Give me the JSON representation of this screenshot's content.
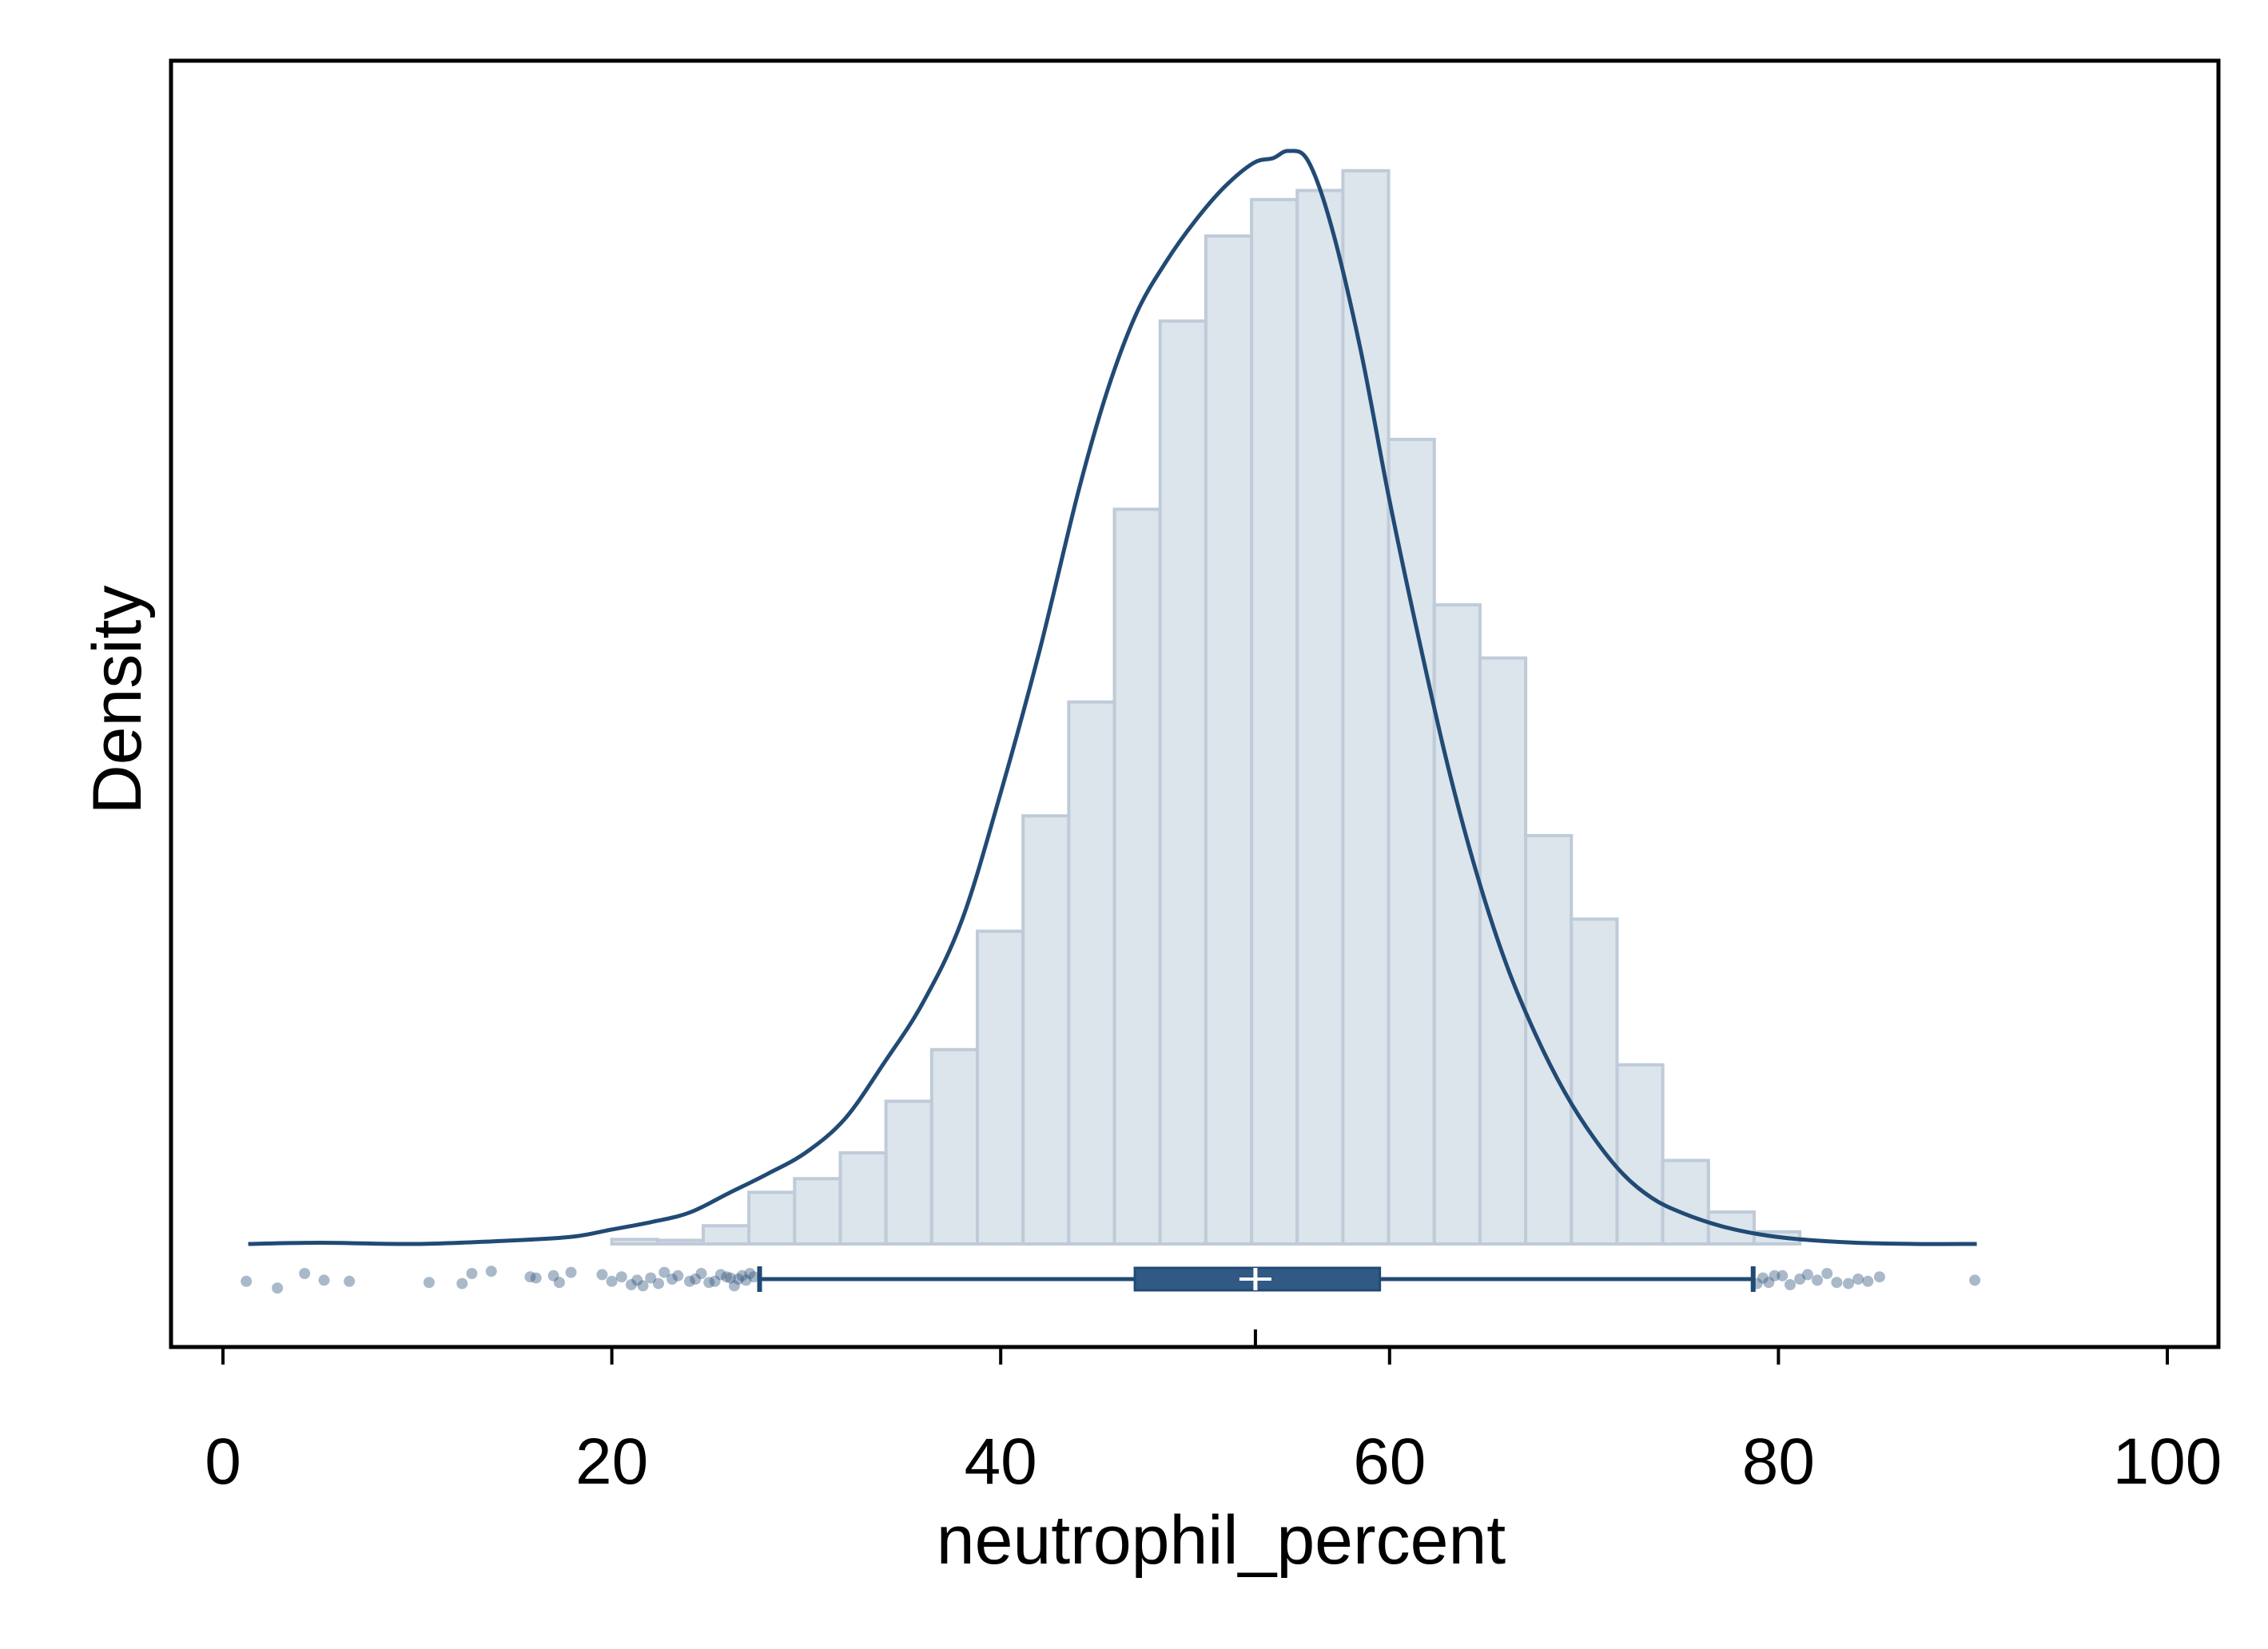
{
  "chart_data": {
    "type": "histogram",
    "xlabel": "neutrophil_percent",
    "ylabel": "Density",
    "xlim": [
      -2.5,
      102.5
    ],
    "xticks": [
      0,
      20,
      40,
      60,
      80,
      100
    ],
    "xtick_labels": [
      "0",
      "20",
      "40",
      "60",
      "80",
      "100"
    ],
    "histogram": {
      "bin_edges": [
        20.0,
        22.35,
        24.7,
        27.05,
        29.4,
        31.75,
        34.1,
        36.45,
        38.8,
        41.15,
        43.5,
        45.85,
        48.2,
        50.55,
        52.9,
        55.25,
        57.6,
        59.95,
        62.3,
        64.65,
        67.0,
        69.35,
        71.7,
        74.05,
        76.4,
        78.75,
        81.1
      ],
      "density": [
        0.15,
        0.12,
        0.6,
        1.7,
        2.15,
        3.0,
        4.7,
        6.4,
        10.3,
        14.1,
        17.85,
        24.2,
        30.4,
        33.2,
        34.4,
        34.7,
        35.35,
        26.5,
        21.05,
        19.3,
        13.45,
        10.7,
        5.9,
        2.75,
        1.05,
        0.4
      ]
    },
    "kde": {
      "x": [
        1.3,
        5,
        10,
        15,
        18,
        20,
        22,
        24,
        26,
        28,
        30,
        32,
        34,
        36,
        38,
        40,
        42,
        44,
        45.5,
        47,
        48.5,
        50,
        51.5,
        53,
        54,
        54.8,
        55.8,
        57,
        58.5,
        60,
        61.5,
        63,
        64.5,
        66,
        67.5,
        69,
        70.5,
        72,
        73.5,
        75,
        77,
        79,
        81,
        84,
        87,
        90.2
      ],
      "y": [
        0.0,
        0.05,
        0.0,
        0.15,
        0.3,
        0.6,
        0.9,
        1.3,
        2.1,
        2.9,
        3.8,
        5.2,
        7.5,
        10.0,
        13.4,
        18.7,
        24.6,
        31.2,
        35.4,
        38.6,
        40.7,
        42.4,
        43.8,
        44.8,
        45.0,
        45.3,
        44.9,
        42.2,
        37.1,
        30.8,
        25.1,
        19.8,
        15.3,
        11.6,
        8.7,
        6.3,
        4.4,
        2.9,
        1.9,
        1.3,
        0.75,
        0.4,
        0.2,
        0.05,
        0.0,
        0.0
      ]
    },
    "boxplot": {
      "whisker_low": 27.6,
      "q1": 46.9,
      "median": 53.1,
      "mean": 53.1,
      "q3": 59.5,
      "whisker_high": 78.7,
      "outliers": [
        1.2,
        2.8,
        4.2,
        5.2,
        6.5,
        10.6,
        12.3,
        12.8,
        13.8,
        15.8,
        16.1,
        17.0,
        17.3,
        17.9,
        19.5,
        20.0,
        20.5,
        21.0,
        21.3,
        21.6,
        22.0,
        22.4,
        22.7,
        23.1,
        23.4,
        24.0,
        24.3,
        24.6,
        25.0,
        25.3,
        25.6,
        25.9,
        26.1,
        26.3,
        26.5,
        26.7,
        26.9,
        27.1,
        27.3,
        78.9,
        79.2,
        79.5,
        79.8,
        80.2,
        80.6,
        81.1,
        81.5,
        82.0,
        82.5,
        83.0,
        83.6,
        84.1,
        84.6,
        85.2,
        90.1
      ],
      "outliers_band": [
        0.2,
        0.8,
        -0.5,
        0.1,
        0.2,
        0.3,
        0.4,
        -0.5,
        -0.7,
        -0.2,
        -0.1,
        -0.3,
        0.3,
        -0.6,
        -0.4,
        0.2,
        -0.2,
        0.5,
        0.1,
        0.6,
        -0.1,
        0.4,
        -0.6,
        0.0,
        -0.3,
        0.2,
        0.0,
        -0.5,
        0.3,
        0.2,
        -0.4,
        -0.2,
        -0.1,
        0.6,
        0.0,
        -0.3,
        0.1,
        -0.5,
        -0.2,
        0.4,
        -0.1,
        0.3,
        -0.3,
        -0.3,
        0.5,
        0.0,
        -0.4,
        0.1,
        -0.5,
        0.3,
        0.4,
        0.0,
        0.2,
        -0.2,
        0.1
      ]
    },
    "colors": {
      "bar_fill": "#dce4ec",
      "bar_edge": "#bfcbd8",
      "line": "#214a74",
      "box_fill": "#305a84",
      "outlier": "#34587e",
      "median_mark": "#ffffff",
      "frame": "#000000"
    },
    "grid": false,
    "legend": "none"
  }
}
